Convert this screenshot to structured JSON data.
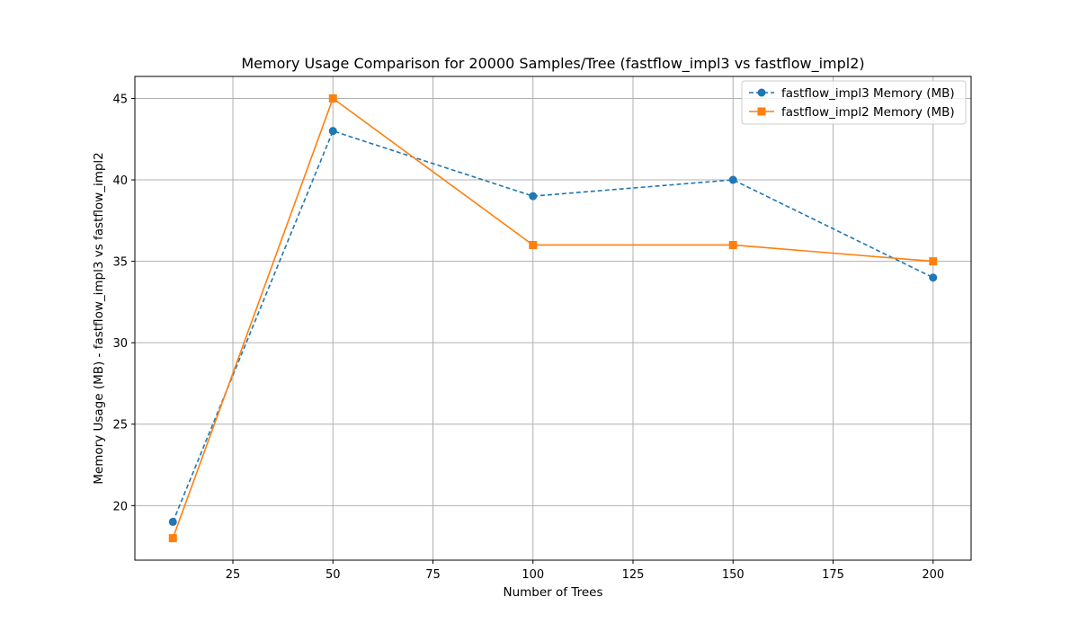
{
  "chart_data": {
    "type": "line",
    "title": "Memory Usage Comparison for 20000 Samples/Tree (fastflow_impl3 vs fastflow_impl2)",
    "xlabel": "Number of Trees",
    "ylabel": "Memory Usage (MB) - fastflow_impl3 vs fastflow_impl2",
    "x": [
      10,
      50,
      100,
      150,
      200
    ],
    "xlim": [
      0.5,
      209.5
    ],
    "ylim": [
      16.65,
      46.35
    ],
    "xticks": [
      25,
      50,
      75,
      100,
      125,
      150,
      175,
      200
    ],
    "yticks": [
      20,
      25,
      30,
      35,
      40,
      45
    ],
    "grid": true,
    "legend_position": "top-right",
    "series": [
      {
        "name": "fastflow_impl3 Memory (MB)",
        "values": [
          19,
          43,
          39,
          40,
          34
        ],
        "color": "#1f77b4",
        "line_style": "dashed",
        "marker": "circle"
      },
      {
        "name": "fastflow_impl2 Memory (MB)",
        "values": [
          18,
          45,
          36,
          36,
          35
        ],
        "color": "#ff7f0e",
        "line_style": "solid",
        "marker": "square"
      }
    ]
  }
}
